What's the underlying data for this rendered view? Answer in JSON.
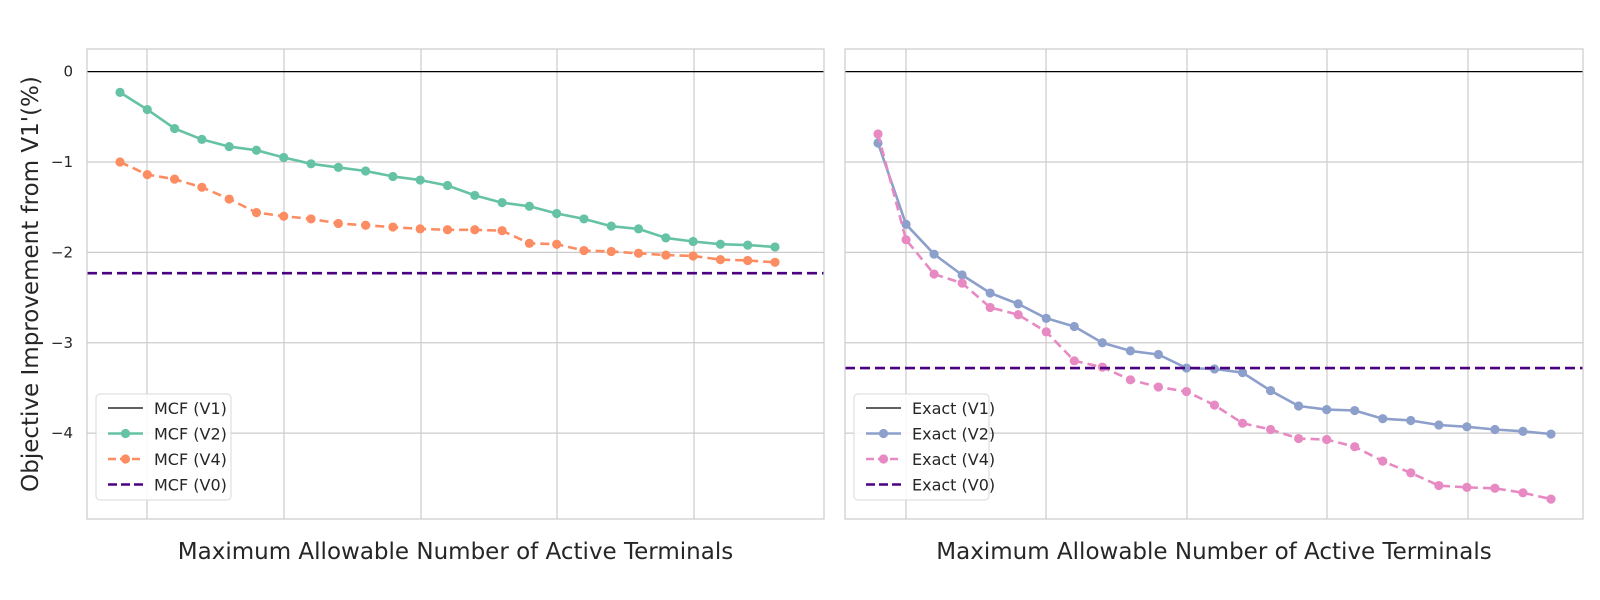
{
  "chart_data": [
    {
      "type": "line",
      "title": "",
      "xlabel": "Maximum Allowable Number of Active Terminals",
      "ylabel": "Objective Improvement from V1'(%)",
      "ylim": [
        -4.95,
        0.25
      ],
      "yticks": [
        0,
        -1,
        -2,
        -3,
        -4
      ],
      "ytick_labels": [
        "0",
        "−1",
        "−2",
        "−3",
        "−4"
      ],
      "grid": true,
      "legend_position": "lower-left",
      "x": [
        1,
        2,
        3,
        4,
        5,
        6,
        7,
        8,
        9,
        10,
        11,
        12,
        13,
        14,
        15,
        16,
        17,
        18,
        19,
        20,
        21,
        22,
        23,
        24,
        25
      ],
      "series": [
        {
          "name": "MCF (V1)",
          "style": "solid",
          "color": "#000000",
          "markers": false,
          "constant": 0
        },
        {
          "name": "MCF (V2)",
          "style": "solid",
          "color": "#66c2a5",
          "markers": true,
          "values": [
            -0.23,
            -0.42,
            -0.63,
            -0.75,
            -0.83,
            -0.87,
            -0.95,
            -1.02,
            -1.06,
            -1.1,
            -1.16,
            -1.2,
            -1.26,
            -1.37,
            -1.45,
            -1.49,
            -1.57,
            -1.63,
            -1.71,
            -1.74,
            -1.84,
            -1.88,
            -1.91,
            -1.92,
            -1.94
          ]
        },
        {
          "name": "MCF (V4)",
          "style": "dashed",
          "color": "#fc8d62",
          "markers": true,
          "values": [
            -1.0,
            -1.14,
            -1.19,
            -1.28,
            -1.41,
            -1.56,
            -1.6,
            -1.63,
            -1.68,
            -1.7,
            -1.72,
            -1.74,
            -1.75,
            -1.75,
            -1.76,
            -1.9,
            -1.91,
            -1.98,
            -1.99,
            -2.01,
            -2.03,
            -2.04,
            -2.08,
            -2.09,
            -2.11
          ]
        },
        {
          "name": "MCF (V0)",
          "style": "dashed",
          "color": "#4b0082",
          "markers": false,
          "constant": -2.23
        }
      ]
    },
    {
      "type": "line",
      "title": "",
      "xlabel": "Maximum Allowable Number of Active Terminals",
      "ylabel": "",
      "ylim": [
        -4.95,
        0.25
      ],
      "yticks": [
        0,
        -1,
        -2,
        -3,
        -4
      ],
      "grid": true,
      "legend_position": "lower-left",
      "x": [
        1,
        2,
        3,
        4,
        5,
        6,
        7,
        8,
        9,
        10,
        11,
        12,
        13,
        14,
        15,
        16,
        17,
        18,
        19,
        20,
        21,
        22,
        23,
        24,
        25
      ],
      "series": [
        {
          "name": "Exact (V1)",
          "style": "solid",
          "color": "#000000",
          "markers": false,
          "constant": 0
        },
        {
          "name": "Exact (V2)",
          "style": "solid",
          "color": "#8da0cb",
          "markers": true,
          "values": [
            -0.79,
            -1.69,
            -2.02,
            -2.25,
            -2.45,
            -2.57,
            -2.73,
            -2.82,
            -3.0,
            -3.09,
            -3.13,
            -3.28,
            -3.29,
            -3.33,
            -3.53,
            -3.7,
            -3.74,
            -3.75,
            -3.84,
            -3.86,
            -3.91,
            -3.93,
            -3.96,
            -3.98,
            -4.01
          ]
        },
        {
          "name": "Exact (V4)",
          "style": "dashed",
          "color": "#e78ac3",
          "markers": true,
          "values": [
            -0.69,
            -1.86,
            -2.24,
            -2.34,
            -2.61,
            -2.69,
            -2.88,
            -3.2,
            -3.27,
            -3.41,
            -3.49,
            -3.54,
            -3.69,
            -3.89,
            -3.96,
            -4.06,
            -4.07,
            -4.15,
            -4.31,
            -4.44,
            -4.58,
            -4.6,
            -4.61,
            -4.66,
            -4.73
          ]
        },
        {
          "name": "Exact (V0)",
          "style": "dashed",
          "color": "#4b0082",
          "markers": false,
          "constant": -3.28
        }
      ]
    }
  ]
}
